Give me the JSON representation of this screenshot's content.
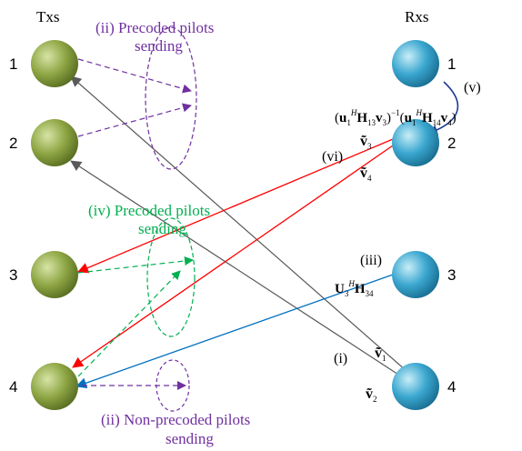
{
  "headers": {
    "tx": "Txs",
    "rx": "Rxs"
  },
  "tx_nodes": [
    "1",
    "2",
    "3",
    "4"
  ],
  "rx_nodes": [
    "1",
    "2",
    "3",
    "4"
  ],
  "labels": {
    "precoded_pilots_top_line1": "(ii) Precoded pilots",
    "precoded_pilots_top_line2": "sending",
    "precoded_pilots_mid_line1": "(iv) Precoded pilots",
    "precoded_pilots_mid_line2": "sending",
    "nonprecoded_line1": "(ii) Non-precoded pilots",
    "nonprecoded_line2": "sending",
    "step_v": "(v)",
    "step_vi": "(vi)",
    "step_iii": "(iii)",
    "step_i": "(i)"
  },
  "colors": {
    "tx_node": "#7f9a3a",
    "rx_node": "#3aa0c8",
    "purple": "#7030a0",
    "green": "#00b050",
    "red": "#ff0000",
    "blue": "#0070c0",
    "gray": "#595959",
    "navy": "#1f3a93"
  }
}
